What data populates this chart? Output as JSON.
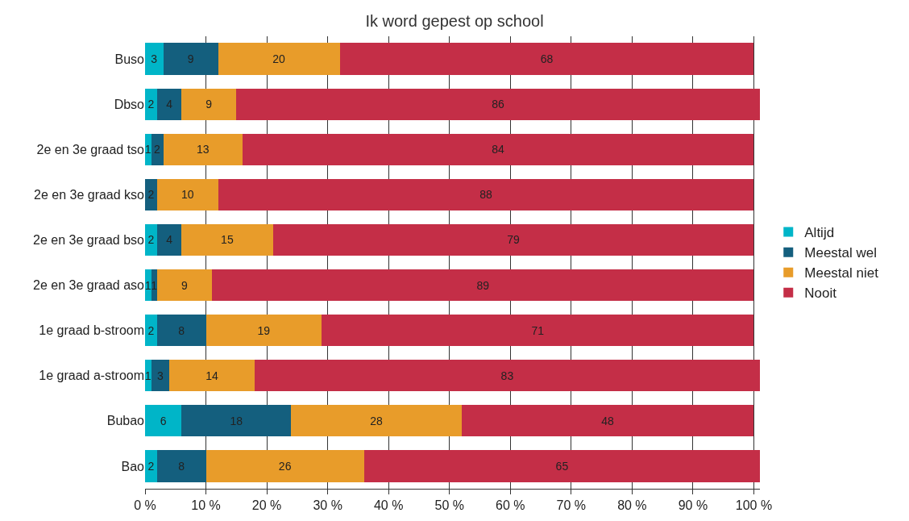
{
  "chart_data": {
    "type": "bar",
    "orientation": "horizontal",
    "stacked": true,
    "title": "Ik word gepest op school",
    "categories": [
      "Buso",
      "Dbso",
      "2e en 3e graad tso",
      "2e en 3e graad kso",
      "2e en 3e graad bso",
      "2e en 3e graad aso",
      "1e graad b-stroom",
      "1e graad a-stroom",
      "Bubao",
      "Bao"
    ],
    "series": [
      {
        "name": "Altijd",
        "color": "#00b5c8",
        "values": [
          3,
          2,
          1,
          null,
          2,
          1,
          2,
          1,
          6,
          2
        ]
      },
      {
        "name": "Meestal wel",
        "color": "#145f7e",
        "values": [
          9,
          4,
          2,
          2,
          4,
          1,
          8,
          3,
          18,
          8
        ]
      },
      {
        "name": "Meestal niet",
        "color": "#e89c2a",
        "values": [
          20,
          9,
          13,
          10,
          15,
          9,
          19,
          14,
          28,
          26
        ]
      },
      {
        "name": "Nooit",
        "color": "#c42e47",
        "values": [
          68,
          86,
          84,
          88,
          79,
          89,
          71,
          83,
          48,
          65
        ]
      }
    ],
    "xlim": [
      0,
      101
    ],
    "xticks": [
      {
        "value": 0,
        "label": "0 %"
      },
      {
        "value": 10,
        "label": "10 %"
      },
      {
        "value": 20,
        "label": "20 %"
      },
      {
        "value": 30,
        "label": "30 %"
      },
      {
        "value": 40,
        "label": "40 %"
      },
      {
        "value": 50,
        "label": "50 %"
      },
      {
        "value": 60,
        "label": "60 %"
      },
      {
        "value": 70,
        "label": "70 %"
      },
      {
        "value": 80,
        "label": "80 %"
      },
      {
        "value": 90,
        "label": "90 %"
      },
      {
        "value": 100,
        "label": "100 %"
      }
    ],
    "grid": "x",
    "legend": "right",
    "data_labels": true
  }
}
